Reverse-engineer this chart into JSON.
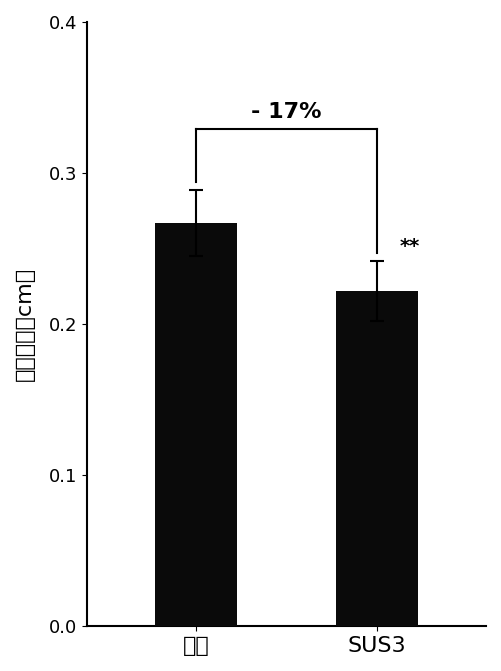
{
  "categories": [
    "对照",
    "SUS3"
  ],
  "values": [
    0.267,
    0.222
  ],
  "errors": [
    0.022,
    0.02
  ],
  "bar_color": "#0a0a0a",
  "ylabel": "病斑长度（cm）",
  "ylim": [
    0.0,
    0.4
  ],
  "yticks": [
    0.0,
    0.1,
    0.2,
    0.3,
    0.4
  ],
  "annotation_text": "- 17%",
  "significance": "**",
  "bar_width": 0.45,
  "figsize": [
    5.01,
    6.71
  ],
  "dpi": 100
}
